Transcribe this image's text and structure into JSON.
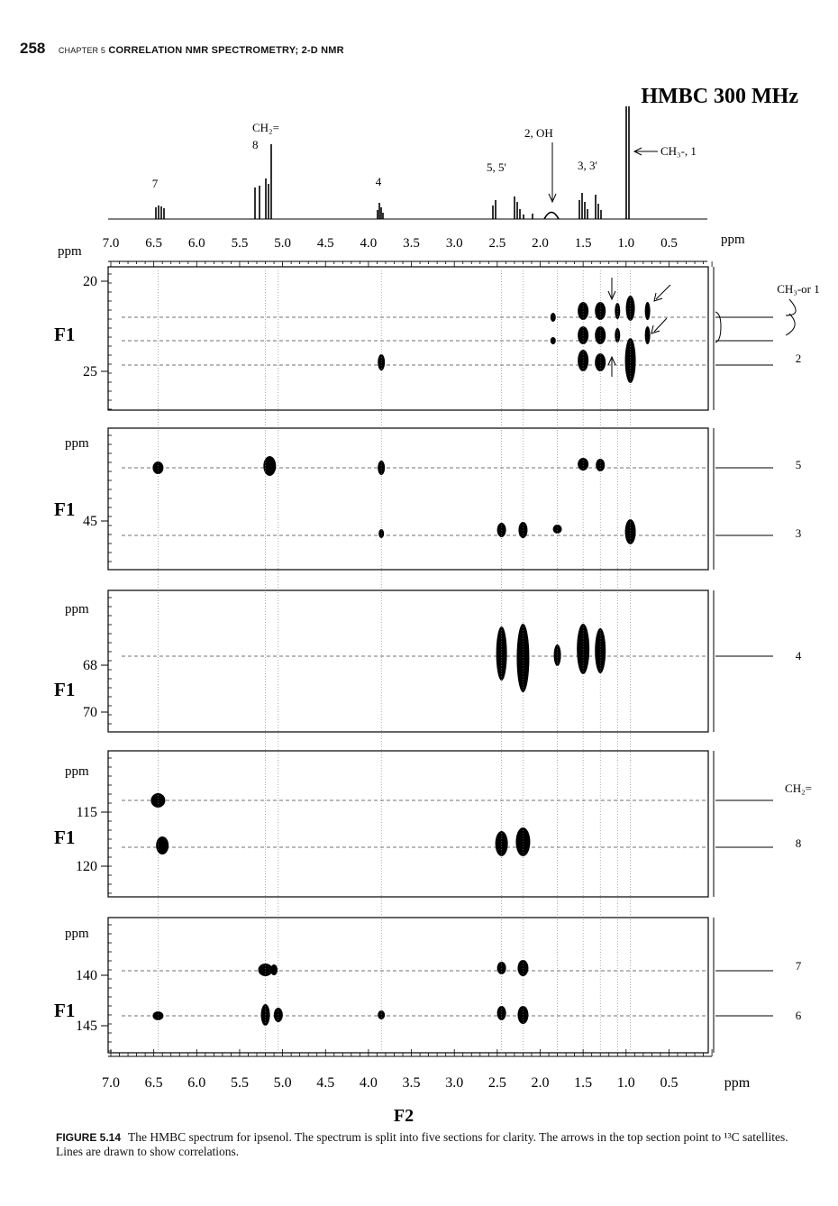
{
  "header": {
    "page_number": "258",
    "chapter_prefix": "CHAPTER 5",
    "chapter_title": "CORRELATION NMR SPECTROMETRY; 2-D NMR"
  },
  "figure": {
    "title": "HMBC 300 MHz",
    "f2_axis_label": "F2",
    "f1_axis_label": "F1",
    "unit": "ppm",
    "f2_ticks": [
      "7.0",
      "6.5",
      "6.0",
      "5.5",
      "5.0",
      "4.5",
      "4.0",
      "3.5",
      "3.0",
      "2.5",
      "2.0",
      "1.5",
      "1.0",
      "0.5"
    ],
    "proton_labels": {
      "h7": "7",
      "ch2_top": "CH₂=",
      "ch2_num": "8",
      "h4": "4",
      "h55": "5,  5'",
      "h2oh": "2, OH",
      "h33": "3, 3'",
      "ch3": "CH₃-, 1"
    },
    "panels": [
      {
        "ticks": [
          "20",
          "25"
        ],
        "assignments": [
          "CH₃-or 1",
          "2"
        ]
      },
      {
        "ticks": [
          "45"
        ],
        "assignments": [
          "5",
          "3"
        ]
      },
      {
        "ticks": [
          "68",
          "70"
        ],
        "assignments": [
          "4"
        ]
      },
      {
        "ticks": [
          "115",
          "120"
        ],
        "assignments": [
          "CH₂=",
          "8"
        ]
      },
      {
        "ticks": [
          "140",
          "145"
        ],
        "assignments": [
          "7",
          "6"
        ]
      }
    ]
  },
  "caption": {
    "label": "FIGURE 5.14",
    "text": "The HMBC spectrum for ipsenol. The spectrum is split into five sections for clarity. The arrows in the top section point to ¹³C satellites. Lines are drawn to show correlations."
  }
}
